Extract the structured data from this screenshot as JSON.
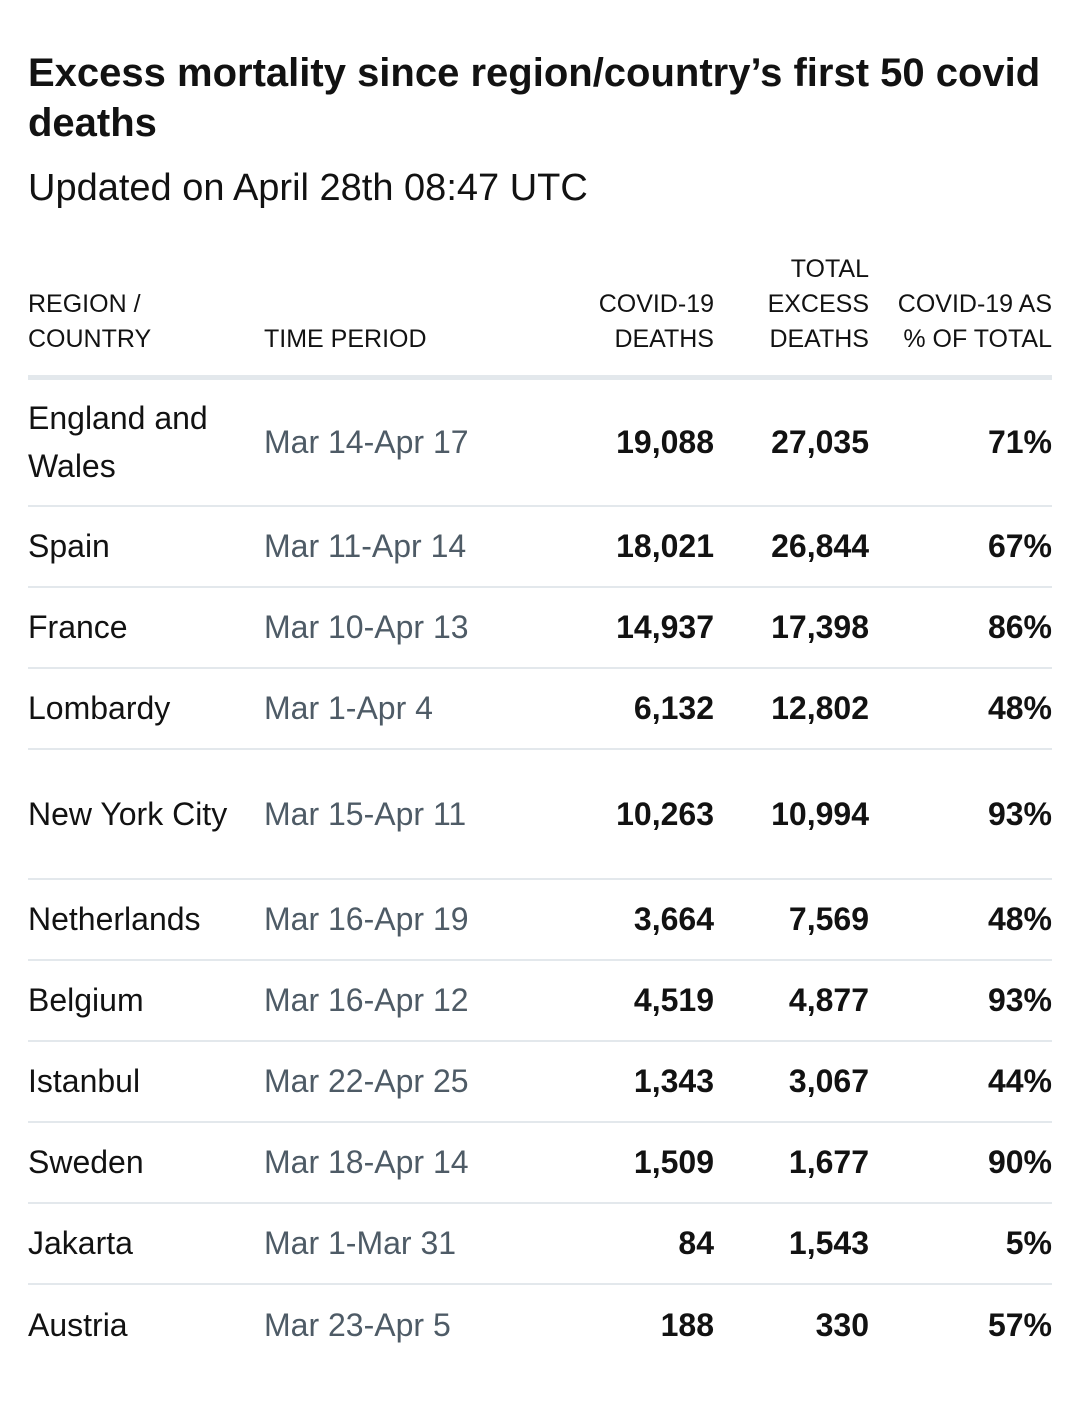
{
  "chart_data": {
    "type": "table",
    "title": "Excess mortality since region/country’s first 50 covid deaths",
    "subtitle": "Updated on April 28th 08:47 UTC",
    "columns": {
      "region": [
        "REGION /",
        "COUNTRY"
      ],
      "period": [
        "TIME PERIOD"
      ],
      "covid": [
        "COVID-19",
        "DEATHS"
      ],
      "excess": [
        "TOTAL",
        "EXCESS",
        "DEATHS"
      ],
      "pct": [
        "COVID-19 AS",
        "% OF TOTAL"
      ]
    },
    "rows": [
      {
        "region": "England and Wales",
        "period": "Mar 14-Apr 17",
        "covid": "19,088",
        "excess": "27,035",
        "pct": "71%"
      },
      {
        "region": "Spain",
        "period": "Mar 11-Apr 14",
        "covid": "18,021",
        "excess": "26,844",
        "pct": "67%"
      },
      {
        "region": "France",
        "period": "Mar 10-Apr 13",
        "covid": "14,937",
        "excess": "17,398",
        "pct": "86%"
      },
      {
        "region": "Lombardy",
        "period": "Mar 1-Apr 4",
        "covid": "6,132",
        "excess": "12,802",
        "pct": "48%"
      },
      {
        "region": "New York City",
        "period": "Mar 15-Apr 11",
        "covid": "10,263",
        "excess": "10,994",
        "pct": "93%"
      },
      {
        "region": "Netherlands",
        "period": "Mar 16-Apr 19",
        "covid": "3,664",
        "excess": "7,569",
        "pct": "48%"
      },
      {
        "region": "Belgium",
        "period": "Mar 16-Apr 12",
        "covid": "4,519",
        "excess": "4,877",
        "pct": "93%"
      },
      {
        "region": "Istanbul",
        "period": "Mar 22-Apr 25",
        "covid": "1,343",
        "excess": "3,067",
        "pct": "44%"
      },
      {
        "region": "Sweden",
        "period": "Mar 18-Apr 14",
        "covid": "1,509",
        "excess": "1,677",
        "pct": "90%"
      },
      {
        "region": "Jakarta",
        "period": "Mar 1-Mar 31",
        "covid": "84",
        "excess": "1,543",
        "pct": "5%"
      },
      {
        "region": "Austria",
        "period": "Mar 23-Apr 5",
        "covid": "188",
        "excess": "330",
        "pct": "57%"
      }
    ]
  },
  "colors": {
    "text": "#121212",
    "period_text": "#4e5b66",
    "rule": "#e3e8ec"
  }
}
